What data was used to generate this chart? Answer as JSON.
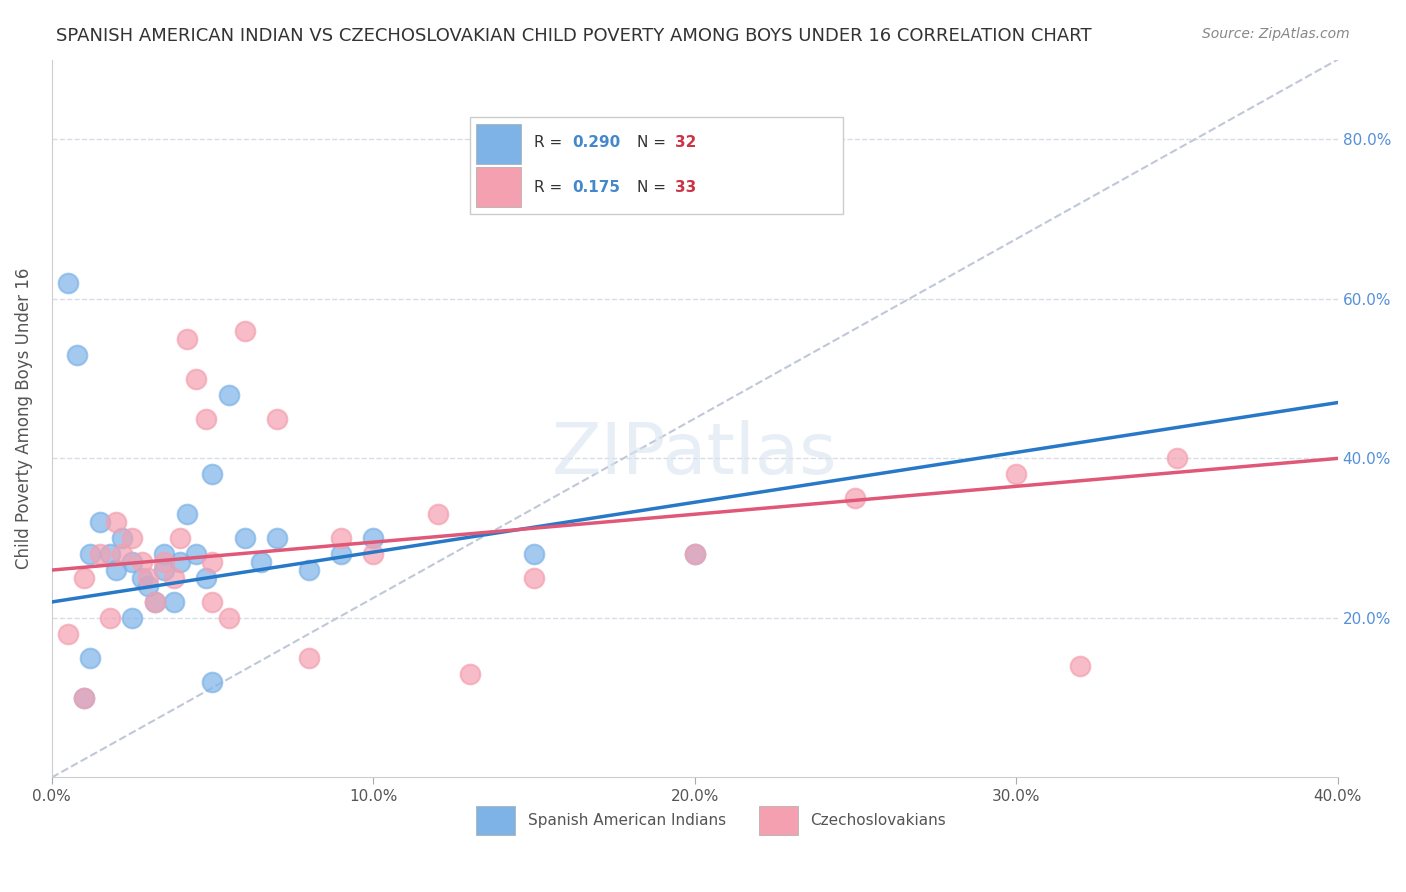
{
  "title": "SPANISH AMERICAN INDIAN VS CZECHOSLOVAKIAN CHILD POVERTY AMONG BOYS UNDER 16 CORRELATION CHART",
  "source": "Source: ZipAtlas.com",
  "xlabel": "",
  "ylabel": "Child Poverty Among Boys Under 16",
  "watermark": "ZIPatlas",
  "xlim": [
    0.0,
    0.4
  ],
  "ylim": [
    0.0,
    0.9
  ],
  "xticks": [
    0.0,
    0.1,
    0.2,
    0.3,
    0.4
  ],
  "xtick_labels": [
    "0.0%",
    "10.0%",
    "20.0%",
    "30.0%",
    "40.0%"
  ],
  "ytick_labels_right": [
    "20.0%",
    "40.0%",
    "60.0%",
    "80.0%"
  ],
  "ytick_positions_right": [
    0.2,
    0.4,
    0.6,
    0.8
  ],
  "legend_r1": "R = 0.290",
  "legend_n1": "N = 32",
  "legend_r2": "R = 0.175",
  "legend_n2": "N = 33",
  "blue_color": "#7EB3E8",
  "pink_color": "#F4A0B0",
  "blue_line_color": "#2878C8",
  "pink_line_color": "#E05878",
  "ref_line_color": "#C0C8D8",
  "grid_color": "#D8DCE8",
  "background_color": "#FFFFFF",
  "blue_scatter_x": [
    0.005,
    0.008,
    0.012,
    0.015,
    0.018,
    0.02,
    0.022,
    0.025,
    0.028,
    0.03,
    0.032,
    0.035,
    0.038,
    0.04,
    0.042,
    0.045,
    0.048,
    0.05,
    0.055,
    0.06,
    0.065,
    0.07,
    0.08,
    0.09,
    0.1,
    0.012,
    0.025,
    0.035,
    0.15,
    0.2,
    0.01,
    0.05
  ],
  "blue_scatter_y": [
    0.62,
    0.53,
    0.28,
    0.32,
    0.28,
    0.26,
    0.3,
    0.27,
    0.25,
    0.24,
    0.22,
    0.26,
    0.22,
    0.27,
    0.33,
    0.28,
    0.25,
    0.38,
    0.48,
    0.3,
    0.27,
    0.3,
    0.26,
    0.28,
    0.3,
    0.15,
    0.2,
    0.28,
    0.28,
    0.28,
    0.1,
    0.12
  ],
  "pink_scatter_x": [
    0.005,
    0.01,
    0.015,
    0.018,
    0.02,
    0.022,
    0.025,
    0.028,
    0.03,
    0.032,
    0.035,
    0.038,
    0.04,
    0.042,
    0.045,
    0.048,
    0.05,
    0.055,
    0.06,
    0.07,
    0.08,
    0.09,
    0.1,
    0.12,
    0.15,
    0.2,
    0.25,
    0.3,
    0.35,
    0.05,
    0.13,
    0.32,
    0.01
  ],
  "pink_scatter_y": [
    0.18,
    0.25,
    0.28,
    0.2,
    0.32,
    0.28,
    0.3,
    0.27,
    0.25,
    0.22,
    0.27,
    0.25,
    0.3,
    0.55,
    0.5,
    0.45,
    0.22,
    0.2,
    0.56,
    0.45,
    0.15,
    0.3,
    0.28,
    0.33,
    0.25,
    0.28,
    0.35,
    0.38,
    0.4,
    0.27,
    0.13,
    0.14,
    0.1
  ],
  "blue_trend_x": [
    0.0,
    0.4
  ],
  "blue_trend_y": [
    0.22,
    0.47
  ],
  "pink_trend_x": [
    0.0,
    0.4
  ],
  "pink_trend_y": [
    0.26,
    0.4
  ],
  "ref_line_x": [
    0.0,
    0.4
  ],
  "ref_line_y": [
    0.0,
    0.9
  ]
}
